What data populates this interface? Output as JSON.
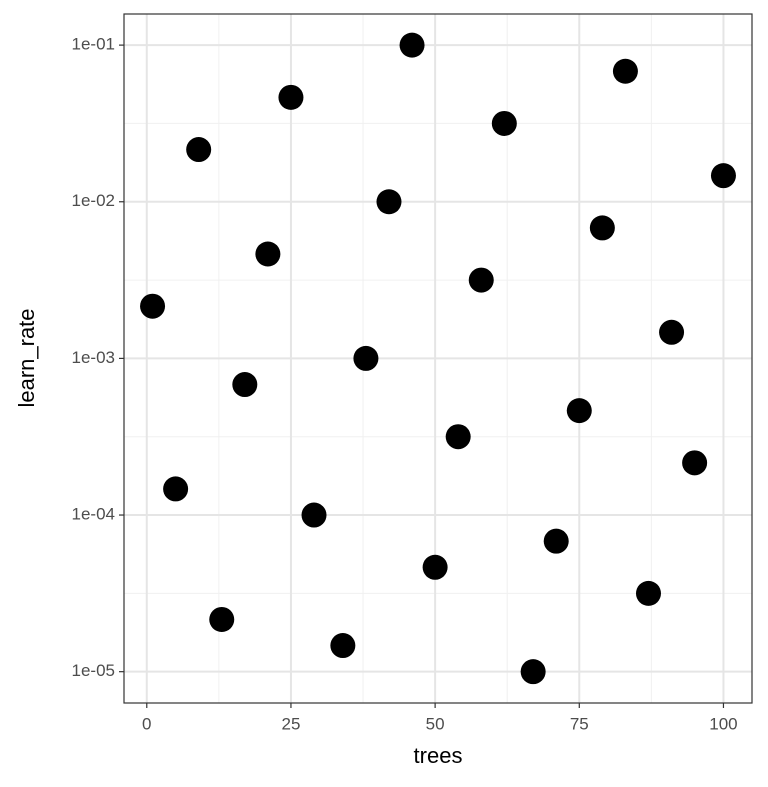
{
  "chart_data": {
    "type": "scatter",
    "x_label": "trees",
    "y_label": "learn_rate",
    "x": [
      1,
      5,
      9,
      13,
      17,
      21,
      25,
      29,
      34,
      38,
      42,
      46,
      50,
      54,
      58,
      62,
      67,
      71,
      75,
      79,
      83,
      87,
      91,
      95,
      100
    ],
    "values": [
      0.002154,
      0.0001468,
      0.02154,
      2.154e-05,
      0.000681,
      0.00464,
      0.0464,
      0.0001,
      1.468e-05,
      0.001,
      0.01,
      0.1,
      4.64e-05,
      0.0003162,
      0.003162,
      0.03162,
      1e-05,
      6.81e-05,
      0.000464,
      0.00681,
      0.0681,
      3.162e-05,
      0.001468,
      0.0002154,
      0.01468
    ],
    "color": "#000000",
    "xlim": [
      -3.95,
      104.95
    ],
    "xticks": [
      0,
      25,
      50,
      75,
      100
    ],
    "ylim": [
      6.31e-06,
      0.158
    ],
    "yticks": [
      {
        "value": 1e-05,
        "label": "1e-05"
      },
      {
        "value": 0.0001,
        "label": "1e-04"
      },
      {
        "value": 0.001,
        "label": "1e-03"
      },
      {
        "value": 0.01,
        "label": "1e-02"
      },
      {
        "value": 0.1,
        "label": "1e-01"
      }
    ],
    "log_y": true,
    "grid": true
  }
}
